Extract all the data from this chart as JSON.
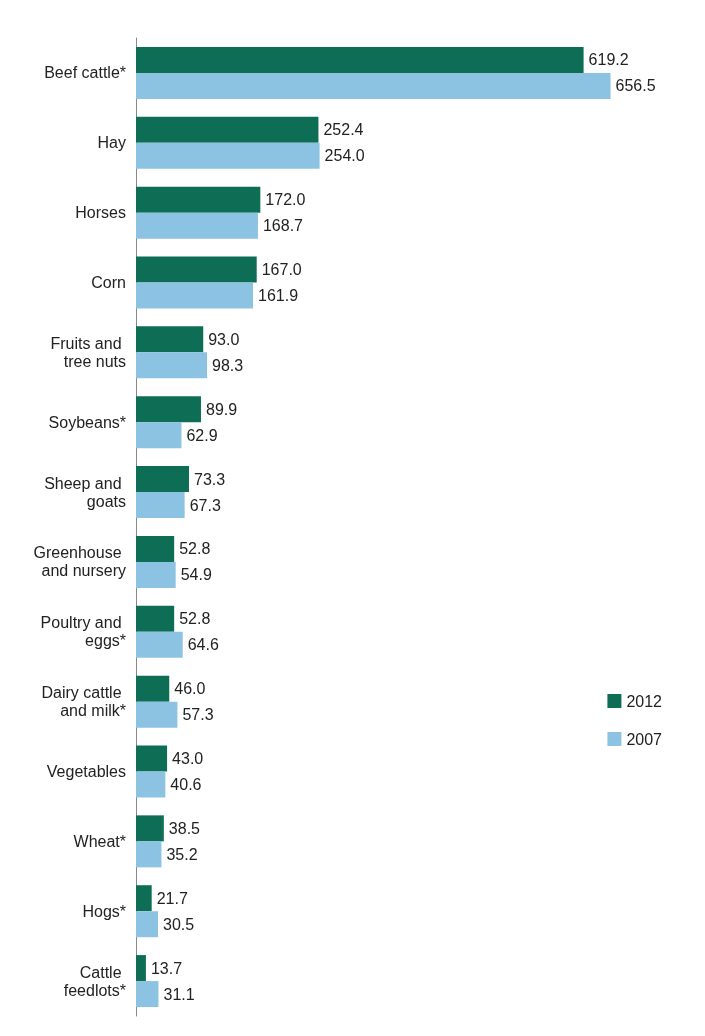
{
  "chart_data": {
    "type": "bar",
    "orientation": "horizontal",
    "categories": [
      "Beef cattle*",
      "Hay",
      "Horses",
      "Corn",
      "Fruits and tree nuts",
      "Soybeans*",
      "Sheep and goats",
      "Greenhouse and nursery",
      "Poultry and eggs*",
      "Dairy cattle and milk*",
      "Vegetables",
      "Wheat*",
      "Hogs*",
      "Cattle feedlots*"
    ],
    "series": [
      {
        "name": "2012",
        "color": "#0e6e55",
        "values": [
          619.2,
          252.4,
          172.0,
          167.0,
          93.0,
          89.9,
          73.3,
          52.8,
          52.8,
          46.0,
          43.0,
          38.5,
          21.7,
          13.7
        ],
        "value_labels": [
          "619.2",
          "252.4",
          "172.0",
          "167.0",
          "93.0",
          "89.9",
          "73.3",
          "52.8",
          "52.8",
          "46.0",
          "43.0",
          "38.5",
          "21.7",
          "13.7"
        ]
      },
      {
        "name": "2007",
        "color": "#8cc3e3",
        "values": [
          656.5,
          254.0,
          168.7,
          161.9,
          98.3,
          62.9,
          67.3,
          54.9,
          64.6,
          57.3,
          40.6,
          35.2,
          30.5,
          31.1
        ],
        "value_labels": [
          "656.5",
          "254.0",
          "168.7",
          "161.9",
          "98.3",
          "62.9",
          "67.3",
          "54.9",
          "64.6",
          "57.3",
          "40.6",
          "35.2",
          "30.5",
          "31.1"
        ]
      }
    ],
    "legend": "right"
  }
}
